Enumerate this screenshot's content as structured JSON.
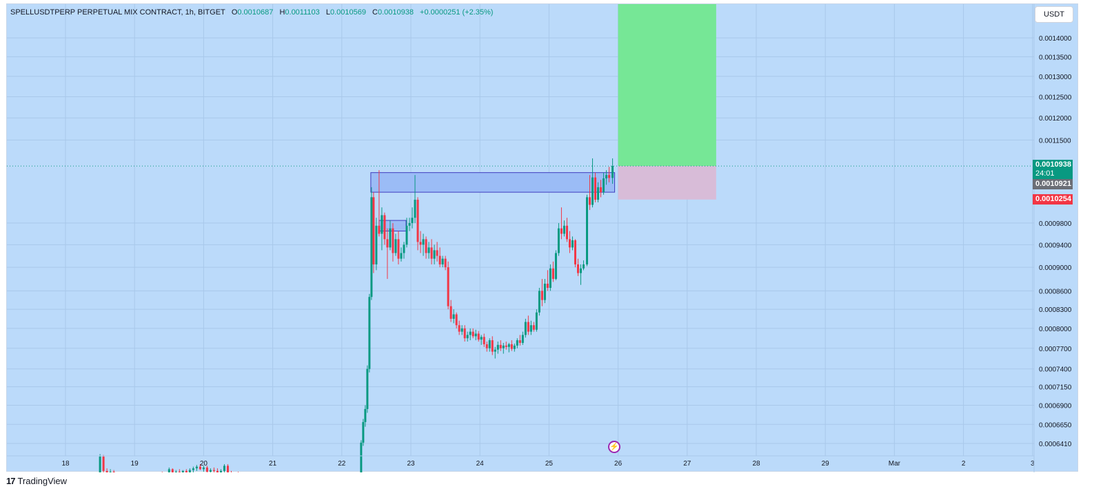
{
  "header": {
    "symbol": "SPELLUSDTPERP PERPETUAL MIX CONTRACT, 1h, BITGET",
    "open_label": "O",
    "open": "0.0010687",
    "high_label": "H",
    "high": "0.0011103",
    "low_label": "L",
    "low": "0.0010569",
    "close_label": "C",
    "close": "0.0010938",
    "change": "+0.0000251 (+2.35%)"
  },
  "currency_button": "USDT",
  "tags": {
    "last_price": "0.0010938",
    "countdown": "24:01",
    "prev_price": "0.0010921",
    "stop_price": "0.0010254"
  },
  "footer": {
    "logo_mark": "17",
    "logo_text": "TradingView"
  },
  "colors": {
    "background": "#bbdafa",
    "up": "#089981",
    "down": "#f23645",
    "profit_zone": "#76e796",
    "loss_zone": "#d8bcd8",
    "box": "#9bbcf6",
    "box_border": "#3e3bbf"
  },
  "icons": {
    "flash": "lightning-icon"
  },
  "chart_data": {
    "type": "candlestick",
    "title": "SPELLUSDTPERP PERPETUAL MIX CONTRACT, 1h, BITGET",
    "y_ticks": [
      "0.0014000",
      "0.0013500",
      "0.0013000",
      "0.0012500",
      "0.0012000",
      "0.0011500",
      "0.0009800",
      "0.0009400",
      "0.0009000",
      "0.0008600",
      "0.0008300",
      "0.0008000",
      "0.0007700",
      "0.0007400",
      "0.0007150",
      "0.0006900",
      "0.0006650",
      "0.0006410"
    ],
    "x_ticks": [
      "18",
      "19",
      "20",
      "21",
      "22",
      "23",
      "24",
      "25",
      "26",
      "27",
      "28",
      "29",
      "Mar",
      "2",
      "3"
    ],
    "log_scale": true,
    "grid": true,
    "current_price": 0.0010938,
    "position": {
      "entry": 0.0010938,
      "stop": 0.0010254,
      "target": 0.0014,
      "start_day": 26.0,
      "end_day": 27.42
    },
    "zone_box": {
      "top": 0.00108,
      "bottom": 0.00104,
      "start_day": 22.42,
      "end_day": 25.95
    },
    "small_box": {
      "top": 0.000985,
      "bottom": 0.000965,
      "start_day": 22.54,
      "end_day": 22.93
    },
    "candles": [
      {
        "day": 17.95,
        "o": 0.0006,
        "h": 0.000603,
        "l": 0.000598,
        "c": 0.000601
      },
      {
        "day": 18.2,
        "o": 0.000601,
        "h": 0.000604,
        "l": 0.000599,
        "c": 0.000603
      },
      {
        "day": 18.25,
        "o": 0.000603,
        "h": 0.000606,
        "l": 0.000601,
        "c": 0.000604
      },
      {
        "day": 18.3,
        "o": 0.000604,
        "h": 0.000605,
        "l": 0.0006,
        "c": 0.000601
      },
      {
        "day": 18.4,
        "o": 0.000601,
        "h": 0.000604,
        "l": 0.0006,
        "c": 0.000603
      },
      {
        "day": 18.5,
        "o": 0.000603,
        "h": 0.000628,
        "l": 0.000602,
        "c": 0.000625
      },
      {
        "day": 18.55,
        "o": 0.000625,
        "h": 0.000627,
        "l": 0.000605,
        "c": 0.000608
      },
      {
        "day": 18.6,
        "o": 0.000608,
        "h": 0.000611,
        "l": 0.000603,
        "c": 0.000605
      },
      {
        "day": 18.65,
        "o": 0.000605,
        "h": 0.00061,
        "l": 0.000603,
        "c": 0.000607
      },
      {
        "day": 18.7,
        "o": 0.000607,
        "h": 0.000609,
        "l": 0.000602,
        "c": 0.000603
      },
      {
        "day": 18.75,
        "o": 0.000603,
        "h": 0.000606,
        "l": 0.0006,
        "c": 0.000601
      },
      {
        "day": 18.8,
        "o": 0.000601,
        "h": 0.000604,
        "l": 0.000599,
        "c": 0.000603
      },
      {
        "day": 19.05,
        "o": 0.0006,
        "h": 0.000602,
        "l": 0.000599,
        "c": 0.000601
      },
      {
        "day": 19.1,
        "o": 0.000601,
        "h": 0.000603,
        "l": 0.0006,
        "c": 0.000602
      },
      {
        "day": 19.15,
        "o": 0.000602,
        "h": 0.000604,
        "l": 0.000601,
        "c": 0.000603
      },
      {
        "day": 19.2,
        "o": 0.000603,
        "h": 0.000605,
        "l": 0.000601,
        "c": 0.000602
      },
      {
        "day": 19.25,
        "o": 0.000602,
        "h": 0.000605,
        "l": 0.000601,
        "c": 0.000604
      },
      {
        "day": 19.3,
        "o": 0.000604,
        "h": 0.000606,
        "l": 0.000602,
        "c": 0.000603
      },
      {
        "day": 19.35,
        "o": 0.000603,
        "h": 0.000606,
        "l": 0.000601,
        "c": 0.000605
      },
      {
        "day": 19.4,
        "o": 0.000605,
        "h": 0.000607,
        "l": 0.000603,
        "c": 0.000604
      },
      {
        "day": 19.5,
        "o": 0.000604,
        "h": 0.000612,
        "l": 0.000603,
        "c": 0.00061
      },
      {
        "day": 19.55,
        "o": 0.00061,
        "h": 0.000611,
        "l": 0.000603,
        "c": 0.000604
      },
      {
        "day": 19.6,
        "o": 0.000604,
        "h": 0.000609,
        "l": 0.000603,
        "c": 0.000607
      },
      {
        "day": 19.65,
        "o": 0.000607,
        "h": 0.00061,
        "l": 0.000604,
        "c": 0.000606
      },
      {
        "day": 19.7,
        "o": 0.000606,
        "h": 0.000609,
        "l": 0.000603,
        "c": 0.000608
      },
      {
        "day": 19.75,
        "o": 0.000608,
        "h": 0.00061,
        "l": 0.000604,
        "c": 0.000605
      },
      {
        "day": 19.8,
        "o": 0.000605,
        "h": 0.000611,
        "l": 0.000604,
        "c": 0.000609
      },
      {
        "day": 19.85,
        "o": 0.000609,
        "h": 0.000613,
        "l": 0.000606,
        "c": 0.000611
      },
      {
        "day": 19.9,
        "o": 0.000611,
        "h": 0.000615,
        "l": 0.000608,
        "c": 0.000613
      },
      {
        "day": 19.95,
        "o": 0.000613,
        "h": 0.000616,
        "l": 0.000609,
        "c": 0.00061
      },
      {
        "day": 20.0,
        "o": 0.00061,
        "h": 0.000614,
        "l": 0.000607,
        "c": 0.000612
      },
      {
        "day": 20.05,
        "o": 0.000612,
        "h": 0.000614,
        "l": 0.000606,
        "c": 0.000607
      },
      {
        "day": 20.1,
        "o": 0.000607,
        "h": 0.000611,
        "l": 0.000605,
        "c": 0.000609
      },
      {
        "day": 20.15,
        "o": 0.000609,
        "h": 0.000612,
        "l": 0.000606,
        "c": 0.000608
      },
      {
        "day": 20.2,
        "o": 0.000608,
        "h": 0.000611,
        "l": 0.000603,
        "c": 0.000604
      },
      {
        "day": 20.25,
        "o": 0.000604,
        "h": 0.00061,
        "l": 0.000603,
        "c": 0.000608
      },
      {
        "day": 20.3,
        "o": 0.000608,
        "h": 0.000616,
        "l": 0.000606,
        "c": 0.000614
      },
      {
        "day": 20.35,
        "o": 0.000614,
        "h": 0.000616,
        "l": 0.000604,
        "c": 0.000605
      },
      {
        "day": 20.4,
        "o": 0.000605,
        "h": 0.000608,
        "l": 0.000602,
        "c": 0.000603
      },
      {
        "day": 20.45,
        "o": 0.000603,
        "h": 0.000606,
        "l": 0.000601,
        "c": 0.000605
      },
      {
        "day": 20.5,
        "o": 0.000605,
        "h": 0.000607,
        "l": 0.000601,
        "c": 0.000602
      },
      {
        "day": 20.55,
        "o": 0.000602,
        "h": 0.000605,
        "l": 0.0006,
        "c": 0.000603
      },
      {
        "day": 20.6,
        "o": 0.000603,
        "h": 0.000606,
        "l": 0.000601,
        "c": 0.000604
      },
      {
        "day": 22.25,
        "o": 0.0006,
        "h": 0.000603,
        "l": 0.000598,
        "c": 0.000602
      },
      {
        "day": 22.28,
        "o": 0.000602,
        "h": 0.000645,
        "l": 0.000601,
        "c": 0.000642
      },
      {
        "day": 22.31,
        "o": 0.000642,
        "h": 0.000672,
        "l": 0.000638,
        "c": 0.000668
      },
      {
        "day": 22.34,
        "o": 0.000668,
        "h": 0.00069,
        "l": 0.000662,
        "c": 0.000685
      },
      {
        "day": 22.37,
        "o": 0.000685,
        "h": 0.000745,
        "l": 0.00068,
        "c": 0.00074
      },
      {
        "day": 22.4,
        "o": 0.00074,
        "h": 0.000855,
        "l": 0.000735,
        "c": 0.00085
      },
      {
        "day": 22.43,
        "o": 0.00085,
        "h": 0.00105,
        "l": 0.000845,
        "c": 0.00103
      },
      {
        "day": 22.46,
        "o": 0.00103,
        "h": 0.00104,
        "l": 0.00089,
        "c": 0.000905
      },
      {
        "day": 22.5,
        "o": 0.000905,
        "h": 0.00099,
        "l": 0.000895,
        "c": 0.000975
      },
      {
        "day": 22.54,
        "o": 0.000975,
        "h": 0.001085,
        "l": 0.000955,
        "c": 0.00096
      },
      {
        "day": 22.58,
        "o": 0.00096,
        "h": 0.00101,
        "l": 0.00093,
        "c": 0.000995
      },
      {
        "day": 22.62,
        "o": 0.000995,
        "h": 0.001,
        "l": 0.00094,
        "c": 0.00095
      },
      {
        "day": 22.66,
        "o": 0.00095,
        "h": 0.00097,
        "l": 0.00088,
        "c": 0.000935
      },
      {
        "day": 22.7,
        "o": 0.000935,
        "h": 0.000985,
        "l": 0.00093,
        "c": 0.00097
      },
      {
        "day": 22.74,
        "o": 0.00097,
        "h": 0.00098,
        "l": 0.00091,
        "c": 0.000925
      },
      {
        "day": 22.78,
        "o": 0.000925,
        "h": 0.00096,
        "l": 0.00092,
        "c": 0.00095
      },
      {
        "day": 22.82,
        "o": 0.00095,
        "h": 0.000965,
        "l": 0.000905,
        "c": 0.000915
      },
      {
        "day": 22.86,
        "o": 0.000915,
        "h": 0.000935,
        "l": 0.00091,
        "c": 0.000925
      },
      {
        "day": 22.9,
        "o": 0.000925,
        "h": 0.000945,
        "l": 0.000915,
        "c": 0.00094
      },
      {
        "day": 22.94,
        "o": 0.00094,
        "h": 0.00099,
        "l": 0.000935,
        "c": 0.000975
      },
      {
        "day": 22.98,
        "o": 0.000975,
        "h": 0.00099,
        "l": 0.000965,
        "c": 0.00098
      },
      {
        "day": 23.02,
        "o": 0.00098,
        "h": 0.00101,
        "l": 0.00097,
        "c": 0.00099
      },
      {
        "day": 23.06,
        "o": 0.00099,
        "h": 0.001075,
        "l": 0.00098,
        "c": 0.001025
      },
      {
        "day": 23.1,
        "o": 0.001025,
        "h": 0.00103,
        "l": 0.00093,
        "c": 0.000945
      },
      {
        "day": 23.14,
        "o": 0.000945,
        "h": 0.000965,
        "l": 0.000925,
        "c": 0.00094
      },
      {
        "day": 23.18,
        "o": 0.00094,
        "h": 0.00096,
        "l": 0.00092,
        "c": 0.00095
      },
      {
        "day": 23.22,
        "o": 0.00095,
        "h": 0.000955,
        "l": 0.000915,
        "c": 0.000925
      },
      {
        "day": 23.26,
        "o": 0.000925,
        "h": 0.000945,
        "l": 0.000915,
        "c": 0.000935
      },
      {
        "day": 23.3,
        "o": 0.000935,
        "h": 0.00095,
        "l": 0.000905,
        "c": 0.000915
      },
      {
        "day": 23.34,
        "o": 0.000915,
        "h": 0.00094,
        "l": 0.000905,
        "c": 0.00093
      },
      {
        "day": 23.38,
        "o": 0.00093,
        "h": 0.000945,
        "l": 0.00091,
        "c": 0.00092
      },
      {
        "day": 23.42,
        "o": 0.00092,
        "h": 0.000935,
        "l": 0.0009,
        "c": 0.000905
      },
      {
        "day": 23.46,
        "o": 0.000905,
        "h": 0.00092,
        "l": 0.0009,
        "c": 0.000915
      },
      {
        "day": 23.5,
        "o": 0.000915,
        "h": 0.00092,
        "l": 0.000895,
        "c": 0.0009
      },
      {
        "day": 23.54,
        "o": 0.0009,
        "h": 0.00091,
        "l": 0.00083,
        "c": 0.000835
      },
      {
        "day": 23.58,
        "o": 0.000835,
        "h": 0.000845,
        "l": 0.00081,
        "c": 0.000815
      },
      {
        "day": 23.62,
        "o": 0.000815,
        "h": 0.00083,
        "l": 0.000808,
        "c": 0.000822
      },
      {
        "day": 23.66,
        "o": 0.000822,
        "h": 0.000825,
        "l": 0.0008,
        "c": 0.000805
      },
      {
        "day": 23.7,
        "o": 0.000805,
        "h": 0.000812,
        "l": 0.00079,
        "c": 0.000795
      },
      {
        "day": 23.74,
        "o": 0.000795,
        "h": 0.000805,
        "l": 0.00079,
        "c": 0.0008
      },
      {
        "day": 23.78,
        "o": 0.0008,
        "h": 0.000805,
        "l": 0.00078,
        "c": 0.000785
      },
      {
        "day": 23.82,
        "o": 0.000785,
        "h": 0.000795,
        "l": 0.00078,
        "c": 0.00079
      },
      {
        "day": 23.86,
        "o": 0.00079,
        "h": 0.0008,
        "l": 0.000782,
        "c": 0.000795
      },
      {
        "day": 23.9,
        "o": 0.000795,
        "h": 0.0008,
        "l": 0.000785,
        "c": 0.000788
      },
      {
        "day": 23.94,
        "o": 0.000788,
        "h": 0.000798,
        "l": 0.000782,
        "c": 0.000792
      },
      {
        "day": 23.98,
        "o": 0.000792,
        "h": 0.000796,
        "l": 0.00078,
        "c": 0.000783
      },
      {
        "day": 24.02,
        "o": 0.000783,
        "h": 0.00079,
        "l": 0.000775,
        "c": 0.000787
      },
      {
        "day": 24.06,
        "o": 0.000787,
        "h": 0.000792,
        "l": 0.000772,
        "c": 0.000776
      },
      {
        "day": 24.1,
        "o": 0.000776,
        "h": 0.00078,
        "l": 0.000765,
        "c": 0.00077
      },
      {
        "day": 24.14,
        "o": 0.00077,
        "h": 0.000785,
        "l": 0.000765,
        "c": 0.000782
      },
      {
        "day": 24.18,
        "o": 0.000782,
        "h": 0.000788,
        "l": 0.00076,
        "c": 0.000765
      },
      {
        "day": 24.22,
        "o": 0.000765,
        "h": 0.000772,
        "l": 0.000755,
        "c": 0.000768
      },
      {
        "day": 24.26,
        "o": 0.000768,
        "h": 0.00078,
        "l": 0.000762,
        "c": 0.000775
      },
      {
        "day": 24.3,
        "o": 0.000775,
        "h": 0.000782,
        "l": 0.000766,
        "c": 0.00077
      },
      {
        "day": 24.34,
        "o": 0.00077,
        "h": 0.000778,
        "l": 0.000762,
        "c": 0.000774
      },
      {
        "day": 24.38,
        "o": 0.000774,
        "h": 0.00078,
        "l": 0.000768,
        "c": 0.000772
      },
      {
        "day": 24.42,
        "o": 0.000772,
        "h": 0.000778,
        "l": 0.000764,
        "c": 0.000776
      },
      {
        "day": 24.46,
        "o": 0.000776,
        "h": 0.000782,
        "l": 0.000766,
        "c": 0.000769
      },
      {
        "day": 24.5,
        "o": 0.000769,
        "h": 0.000777,
        "l": 0.000765,
        "c": 0.000774
      },
      {
        "day": 24.54,
        "o": 0.000774,
        "h": 0.000785,
        "l": 0.00077,
        "c": 0.000782
      },
      {
        "day": 24.58,
        "o": 0.000782,
        "h": 0.00079,
        "l": 0.000774,
        "c": 0.000778
      },
      {
        "day": 24.62,
        "o": 0.000778,
        "h": 0.000795,
        "l": 0.000775,
        "c": 0.00079
      },
      {
        "day": 24.66,
        "o": 0.00079,
        "h": 0.000815,
        "l": 0.000786,
        "c": 0.00081
      },
      {
        "day": 24.7,
        "o": 0.00081,
        "h": 0.00082,
        "l": 0.00079,
        "c": 0.000795
      },
      {
        "day": 24.74,
        "o": 0.000795,
        "h": 0.000812,
        "l": 0.00079,
        "c": 0.000805
      },
      {
        "day": 24.78,
        "o": 0.000805,
        "h": 0.00081,
        "l": 0.000795,
        "c": 0.000798
      },
      {
        "day": 24.82,
        "o": 0.000798,
        "h": 0.00083,
        "l": 0.000795,
        "c": 0.000825
      },
      {
        "day": 24.86,
        "o": 0.000825,
        "h": 0.000865,
        "l": 0.00082,
        "c": 0.00086
      },
      {
        "day": 24.9,
        "o": 0.00086,
        "h": 0.00088,
        "l": 0.000835,
        "c": 0.000845
      },
      {
        "day": 24.94,
        "o": 0.000845,
        "h": 0.00088,
        "l": 0.00084,
        "c": 0.000872
      },
      {
        "day": 24.98,
        "o": 0.000872,
        "h": 0.000895,
        "l": 0.00086,
        "c": 0.000865
      },
      {
        "day": 25.02,
        "o": 0.000865,
        "h": 0.000905,
        "l": 0.00086,
        "c": 0.000898
      },
      {
        "day": 25.06,
        "o": 0.000898,
        "h": 0.00091,
        "l": 0.000875,
        "c": 0.00088
      },
      {
        "day": 25.1,
        "o": 0.00088,
        "h": 0.00093,
        "l": 0.000878,
        "c": 0.000925
      },
      {
        "day": 25.14,
        "o": 0.000925,
        "h": 0.00098,
        "l": 0.00092,
        "c": 0.00097
      },
      {
        "day": 25.18,
        "o": 0.00097,
        "h": 0.00101,
        "l": 0.00095,
        "c": 0.00096
      },
      {
        "day": 25.22,
        "o": 0.00096,
        "h": 0.000985,
        "l": 0.000955,
        "c": 0.000975
      },
      {
        "day": 25.26,
        "o": 0.000975,
        "h": 0.00099,
        "l": 0.000945,
        "c": 0.00095
      },
      {
        "day": 25.3,
        "o": 0.00095,
        "h": 0.000965,
        "l": 0.000925,
        "c": 0.000935
      },
      {
        "day": 25.34,
        "o": 0.000935,
        "h": 0.000955,
        "l": 0.00093,
        "c": 0.000948
      },
      {
        "day": 25.38,
        "o": 0.000948,
        "h": 0.00095,
        "l": 0.0009,
        "c": 0.000905
      },
      {
        "day": 25.42,
        "o": 0.000905,
        "h": 0.000915,
        "l": 0.000885,
        "c": 0.00089
      },
      {
        "day": 25.46,
        "o": 0.00089,
        "h": 0.000905,
        "l": 0.00087,
        "c": 0.000898
      },
      {
        "day": 25.5,
        "o": 0.000898,
        "h": 0.000912,
        "l": 0.000895,
        "c": 0.000905
      },
      {
        "day": 25.55,
        "o": 0.000905,
        "h": 0.001035,
        "l": 0.000902,
        "c": 0.00103
      },
      {
        "day": 25.59,
        "o": 0.00103,
        "h": 0.001075,
        "l": 0.001005,
        "c": 0.001015
      },
      {
        "day": 25.63,
        "o": 0.001015,
        "h": 0.00111,
        "l": 0.00101,
        "c": 0.00107
      },
      {
        "day": 25.67,
        "o": 0.00107,
        "h": 0.00108,
        "l": 0.00102,
        "c": 0.001025
      },
      {
        "day": 25.71,
        "o": 0.001025,
        "h": 0.00106,
        "l": 0.00102,
        "c": 0.00105
      },
      {
        "day": 25.75,
        "o": 0.00105,
        "h": 0.001065,
        "l": 0.00103,
        "c": 0.00104
      },
      {
        "day": 25.79,
        "o": 0.00104,
        "h": 0.00108,
        "l": 0.001035,
        "c": 0.001068
      },
      {
        "day": 25.83,
        "o": 0.001068,
        "h": 0.001085,
        "l": 0.001055,
        "c": 0.001075
      },
      {
        "day": 25.87,
        "o": 0.001075,
        "h": 0.001092,
        "l": 0.00106,
        "c": 0.001069
      },
      {
        "day": 25.92,
        "o": 0.001069,
        "h": 0.00111,
        "l": 0.001057,
        "c": 0.001094
      }
    ]
  }
}
